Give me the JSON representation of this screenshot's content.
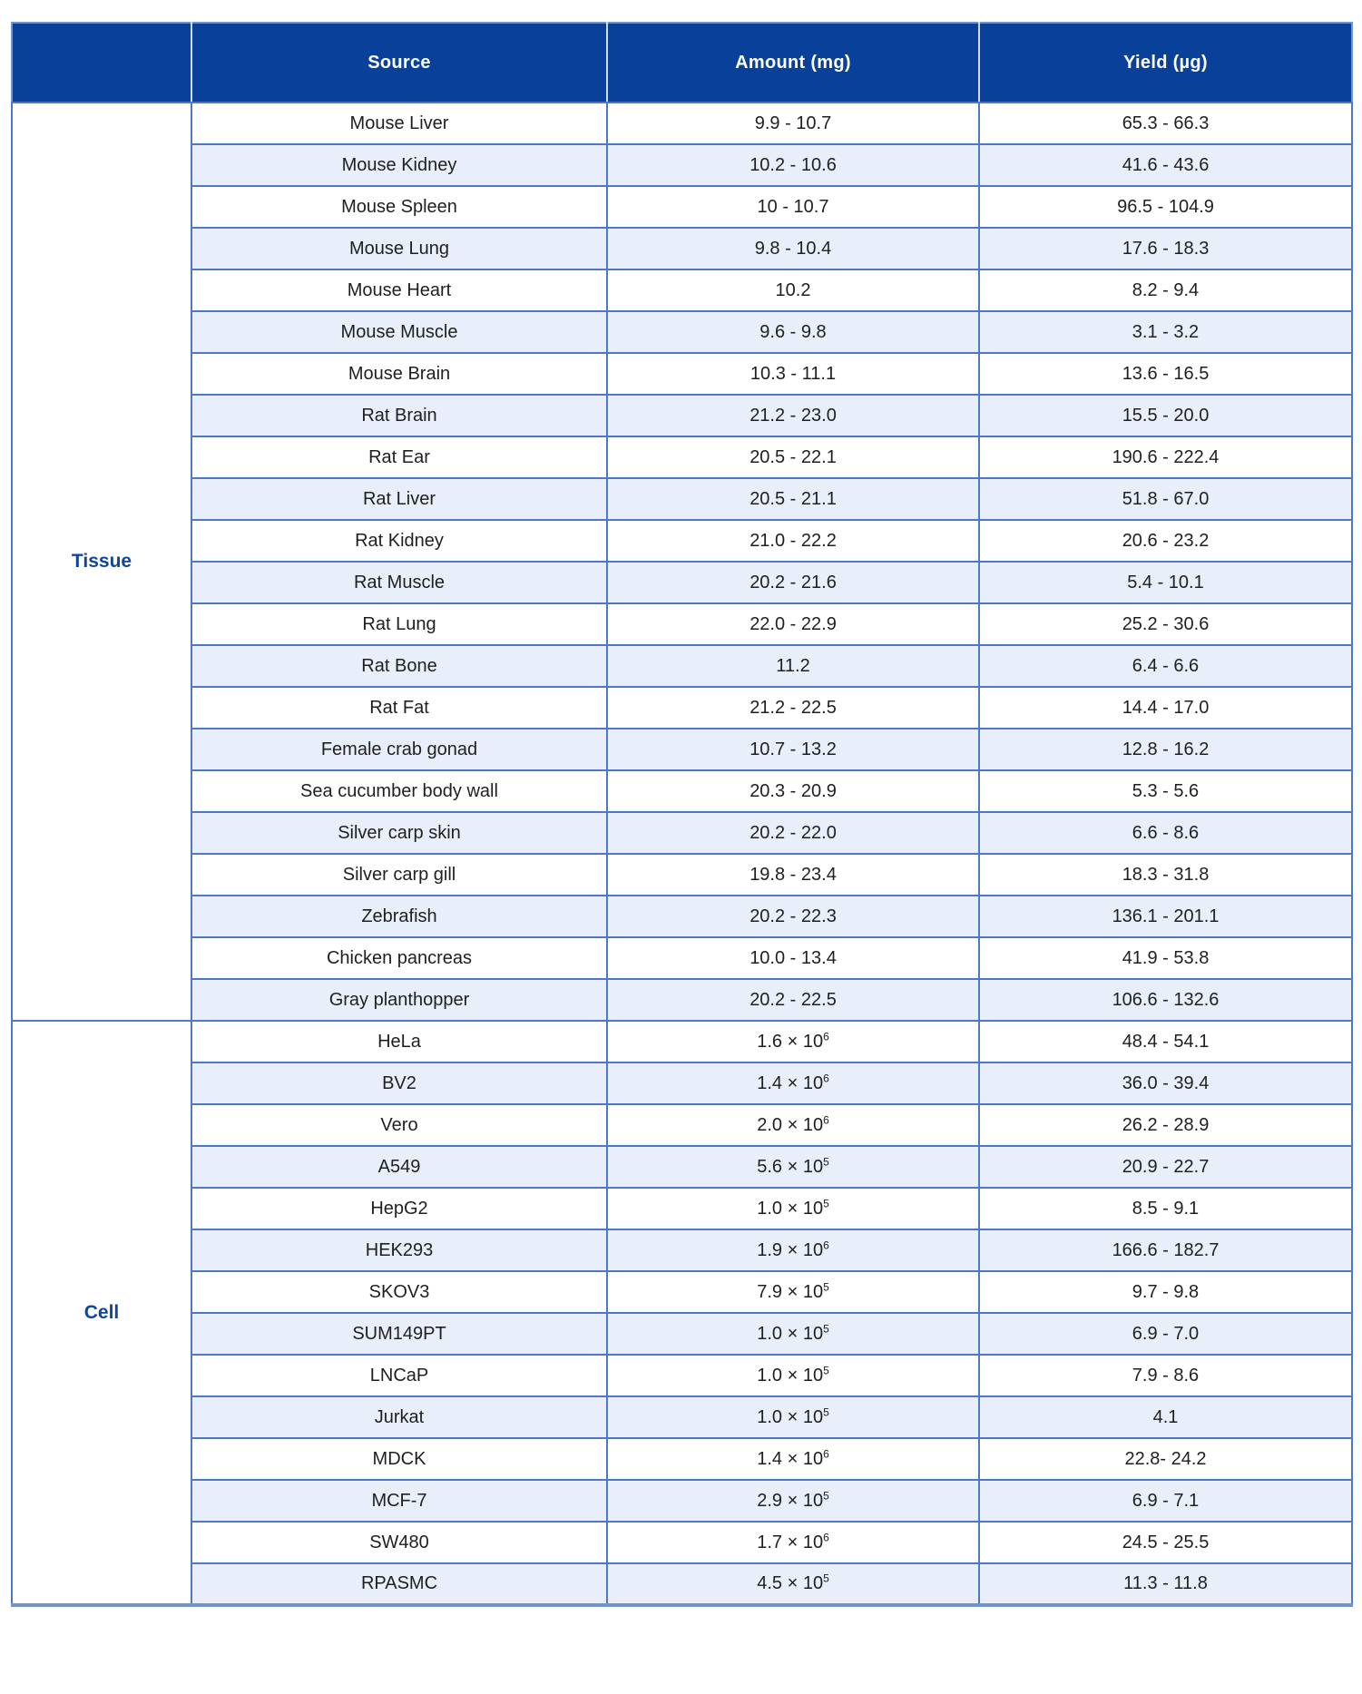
{
  "colors": {
    "header_bg": "#08409a",
    "header_text": "#ffffff",
    "row_alt_bg": "#e8effa",
    "grid_line": "#4d7ac3",
    "outer_border": "#7593c8",
    "category_text": "#10459e",
    "body_text": "#1f1f1f",
    "header_divider": "#cfd9ea",
    "page_bg": "#ffffff"
  },
  "table": {
    "headers": {
      "category": "",
      "source": "Source",
      "amount": "Amount (mg)",
      "yield": "Yield (µg)"
    },
    "sections": [
      {
        "label": "Tissue",
        "rows": [
          {
            "source": "Mouse Liver",
            "amount": "9.9 - 10.7",
            "yield": "65.3 - 66.3"
          },
          {
            "source": "Mouse Kidney",
            "amount": "10.2 - 10.6",
            "yield": "41.6 - 43.6"
          },
          {
            "source": "Mouse Spleen",
            "amount": "10 - 10.7",
            "yield": "96.5 - 104.9"
          },
          {
            "source": "Mouse Lung",
            "amount": "9.8 - 10.4",
            "yield": "17.6 - 18.3"
          },
          {
            "source": "Mouse Heart",
            "amount": "10.2",
            "yield": "8.2 - 9.4"
          },
          {
            "source": "Mouse Muscle",
            "amount": "9.6 - 9.8",
            "yield": "3.1 - 3.2"
          },
          {
            "source": "Mouse Brain",
            "amount": "10.3 - 11.1",
            "yield": "13.6 - 16.5"
          },
          {
            "source": "Rat Brain",
            "amount": "21.2 - 23.0",
            "yield": "15.5 - 20.0"
          },
          {
            "source": "Rat Ear",
            "amount": "20.5 - 22.1",
            "yield": "190.6 - 222.4"
          },
          {
            "source": "Rat Liver",
            "amount": "20.5 - 21.1",
            "yield": "51.8 - 67.0"
          },
          {
            "source": "Rat Kidney",
            "amount": "21.0 - 22.2",
            "yield": "20.6 - 23.2"
          },
          {
            "source": "Rat Muscle",
            "amount": "20.2 - 21.6",
            "yield": "5.4 - 10.1"
          },
          {
            "source": "Rat Lung",
            "amount": "22.0 - 22.9",
            "yield": "25.2 - 30.6"
          },
          {
            "source": "Rat Bone",
            "amount": "11.2",
            "yield": "6.4 - 6.6"
          },
          {
            "source": "Rat Fat",
            "amount": "21.2 - 22.5",
            "yield": "14.4 - 17.0"
          },
          {
            "source": "Female crab gonad",
            "amount": "10.7 - 13.2",
            "yield": "12.8 - 16.2"
          },
          {
            "source": "Sea cucumber body wall",
            "amount": "20.3 - 20.9",
            "yield": "5.3 - 5.6"
          },
          {
            "source": "Silver carp skin",
            "amount": "20.2 - 22.0",
            "yield": "6.6 - 8.6"
          },
          {
            "source": "Silver carp gill",
            "amount": "19.8 - 23.4",
            "yield": "18.3 - 31.8"
          },
          {
            "source": "Zebrafish",
            "amount": "20.2 - 22.3",
            "yield": "136.1 - 201.1"
          },
          {
            "source": "Chicken pancreas",
            "amount": "10.0 - 13.4",
            "yield": "41.9 - 53.8"
          },
          {
            "source": "Gray planthopper",
            "amount": "20.2 - 22.5",
            "yield": "106.6 - 132.6"
          }
        ]
      },
      {
        "label": "Cell",
        "rows": [
          {
            "source": "HeLa",
            "amount": "1.6 × 10",
            "amount_exp": "6",
            "yield": "48.4 - 54.1"
          },
          {
            "source": "BV2",
            "amount": "1.4 × 10",
            "amount_exp": "6",
            "yield": "36.0 - 39.4"
          },
          {
            "source": "Vero",
            "amount": "2.0 × 10",
            "amount_exp": "6",
            "yield": "26.2 - 28.9"
          },
          {
            "source": "A549",
            "amount": "5.6 × 10",
            "amount_exp": "5",
            "yield": "20.9 - 22.7"
          },
          {
            "source": "HepG2",
            "amount": "1.0 × 10",
            "amount_exp": "5",
            "yield": "8.5 - 9.1"
          },
          {
            "source": "HEK293",
            "amount": "1.9 × 10",
            "amount_exp": "6",
            "yield": "166.6 - 182.7"
          },
          {
            "source": "SKOV3",
            "amount": "7.9 × 10",
            "amount_exp": "5",
            "yield": "9.7 - 9.8"
          },
          {
            "source": "SUM149PT",
            "amount": "1.0 × 10",
            "amount_exp": "5",
            "yield": "6.9 - 7.0"
          },
          {
            "source": "LNCaP",
            "amount": "1.0 × 10",
            "amount_exp": "5",
            "yield": "7.9 - 8.6"
          },
          {
            "source": "Jurkat",
            "amount": "1.0 × 10",
            "amount_exp": "5",
            "yield": "4.1"
          },
          {
            "source": "MDCK",
            "amount": "1.4 × 10",
            "amount_exp": "6",
            "yield": "22.8- 24.2"
          },
          {
            "source": "MCF-7",
            "amount": "2.9 × 10",
            "amount_exp": "5",
            "yield": "6.9 - 7.1"
          },
          {
            "source": "SW480",
            "amount": "1.7 × 10",
            "amount_exp": "6",
            "yield": "24.5 - 25.5"
          },
          {
            "source": "RPASMC",
            "amount": "4.5 × 10",
            "amount_exp": "5",
            "yield": "11.3 - 11.8"
          }
        ]
      }
    ]
  }
}
